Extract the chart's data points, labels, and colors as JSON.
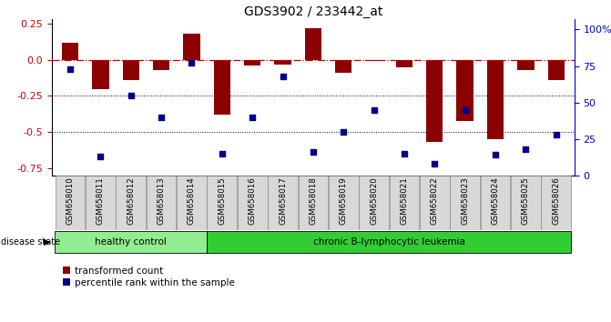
{
  "title": "GDS3902 / 233442_at",
  "samples": [
    "GSM658010",
    "GSM658011",
    "GSM658012",
    "GSM658013",
    "GSM658014",
    "GSM658015",
    "GSM658016",
    "GSM658017",
    "GSM658018",
    "GSM658019",
    "GSM658020",
    "GSM658021",
    "GSM658022",
    "GSM658023",
    "GSM658024",
    "GSM658025",
    "GSM658026"
  ],
  "red_values": [
    0.12,
    -0.2,
    -0.14,
    -0.07,
    0.18,
    -0.38,
    -0.04,
    -0.03,
    0.22,
    -0.09,
    -0.01,
    -0.05,
    -0.57,
    -0.42,
    -0.55,
    -0.07,
    -0.14
  ],
  "blue_values": [
    73,
    13,
    55,
    40,
    77,
    15,
    40,
    68,
    16,
    30,
    45,
    15,
    8,
    45,
    14,
    18,
    28
  ],
  "ylim_left": [
    -0.8,
    0.28
  ],
  "ylim_right": [
    0,
    107
  ],
  "yticks_left": [
    0.25,
    0.0,
    -0.25,
    -0.5,
    -0.75
  ],
  "yticks_right": [
    0,
    25,
    50,
    75,
    100
  ],
  "healthy_count": 5,
  "healthy_label": "healthy control",
  "disease_label": "chronic B-lymphocytic leukemia",
  "disease_state_label": "disease state",
  "legend_red": "transformed count",
  "legend_blue": "percentile rank within the sample",
  "bar_color": "#8B0000",
  "blue_color": "#00008B",
  "hline_color": "#CC0000",
  "dotted_color": "black",
  "healthy_bg": "#90EE90",
  "disease_bg": "#32CD32",
  "left_tick_color": "#CC0000",
  "right_tick_color": "#0000CC",
  "bg_color": "#ffffff"
}
